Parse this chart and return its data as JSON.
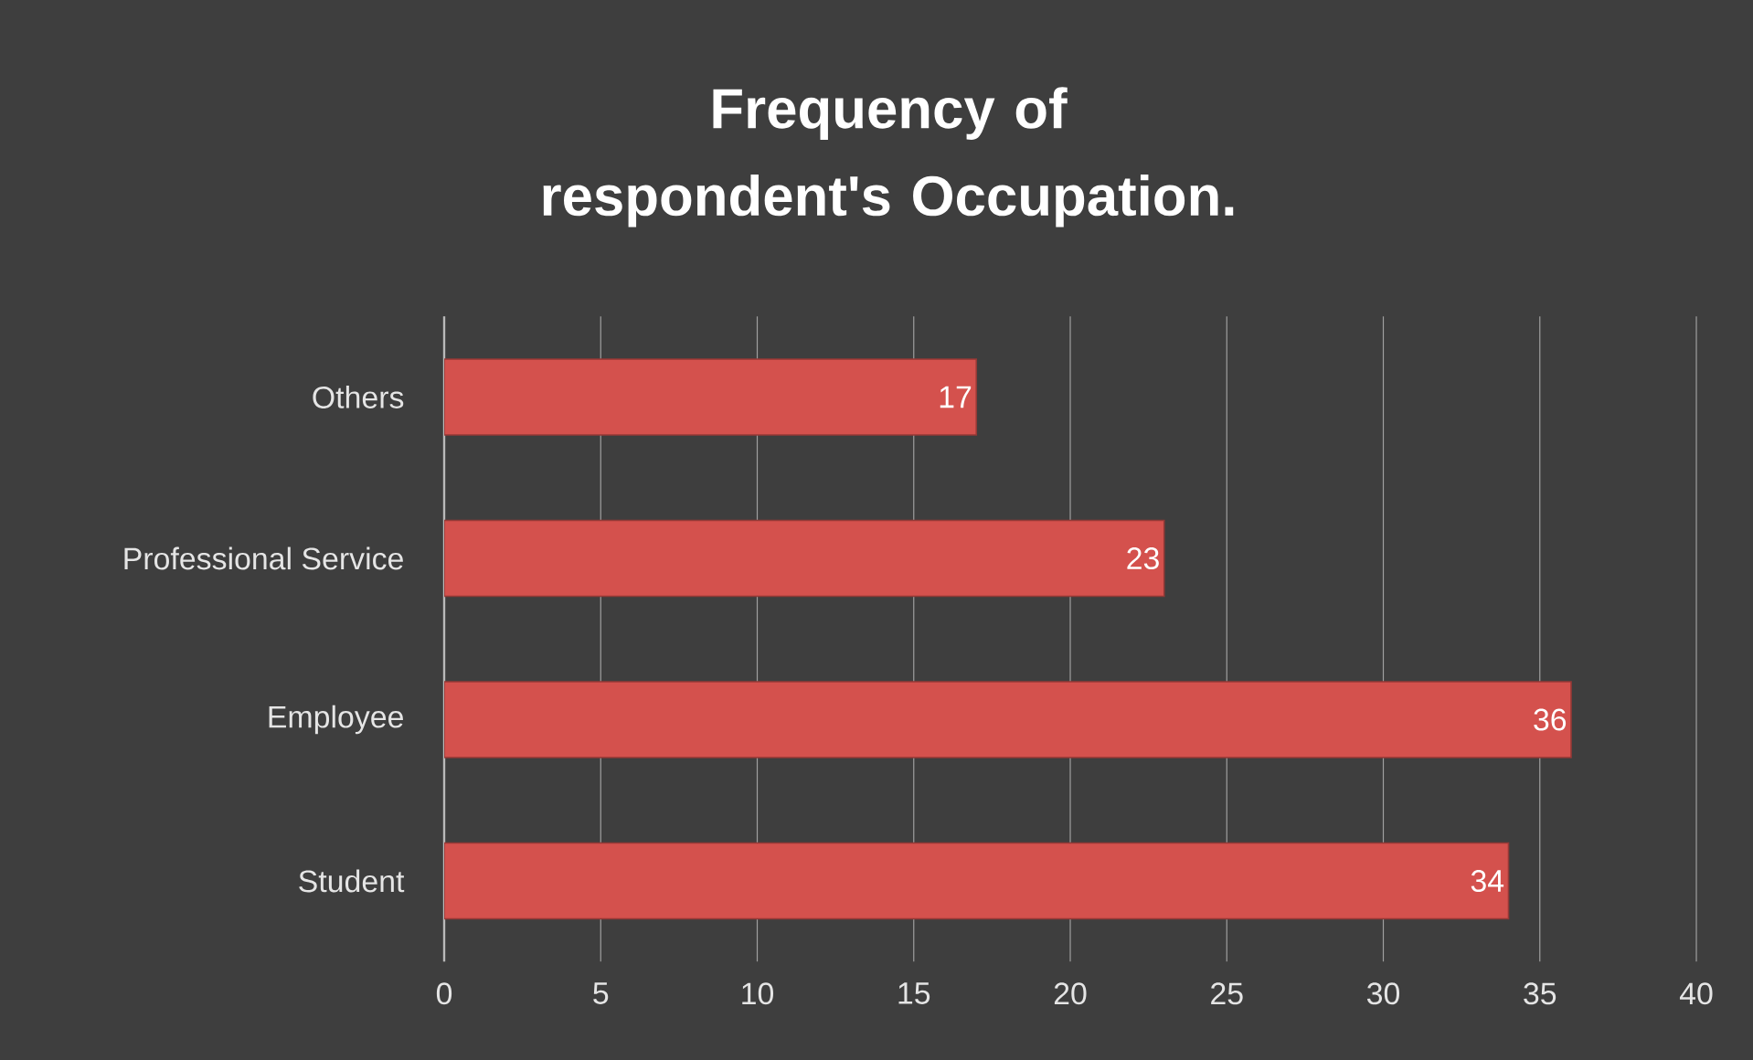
{
  "chart_data": {
    "type": "bar",
    "orientation": "horizontal",
    "title": "Frequency of respondent's Occupation.",
    "categories": [
      "Others",
      "Professional Service",
      "Employee",
      "Student"
    ],
    "values": [
      17,
      23,
      36,
      34
    ],
    "color": "#d4514d",
    "xlim": [
      0,
      40
    ],
    "xticks": [
      0,
      5,
      10,
      15,
      20,
      25,
      30,
      35,
      40
    ],
    "grid": "x",
    "data_labels": true
  }
}
